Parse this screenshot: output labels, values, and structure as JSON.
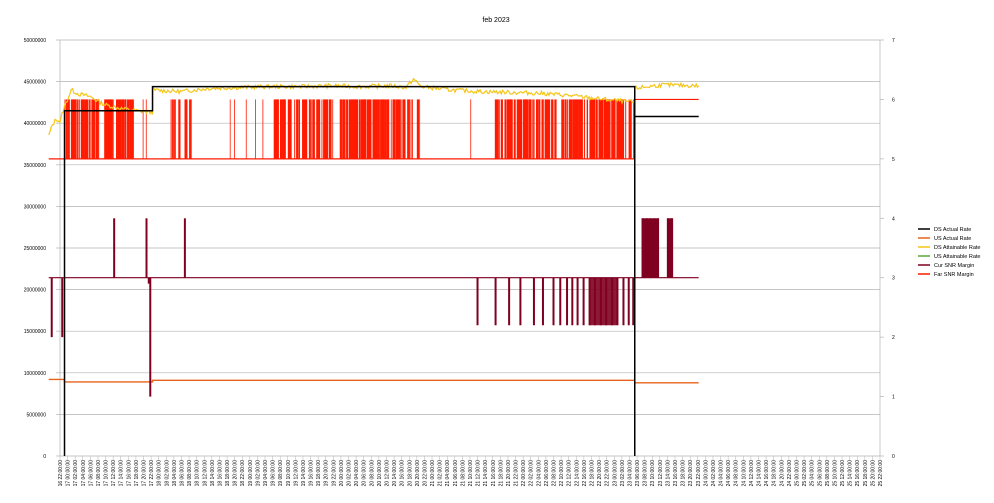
{
  "chart_data": {
    "type": "line",
    "title": "feb 2023",
    "xlabel": "",
    "ylabel": "",
    "ylim": [
      0,
      50000000
    ],
    "y2lim": [
      0,
      7
    ],
    "y_ticks": [
      "0",
      "5000000",
      "10000000",
      "15000000",
      "20000000",
      "25000000",
      "30000000",
      "35000000",
      "40000000",
      "45000000",
      "50000000"
    ],
    "y2_ticks": [
      "0",
      "1",
      "2",
      "3",
      "4",
      "5",
      "6",
      "7"
    ],
    "x_tick_labels": [
      "16 22:00:00",
      "17 00:00:00",
      "17 02:00:00",
      "17 04:00:00",
      "17 06:00:00",
      "17 08:00:00",
      "17 10:00:00",
      "17 12:00:00",
      "17 14:00:00",
      "17 16:00:00",
      "17 18:00:00",
      "17 20:00:00",
      "17 22:00:00",
      "18 00:00:00",
      "18 02:00:00",
      "18 04:00:00",
      "18 06:00:00",
      "18 08:00:00",
      "18 10:00:00",
      "18 12:00:00",
      "18 14:00:00",
      "18 16:00:00",
      "18 18:00:00",
      "18 20:00:00",
      "18 22:00:00",
      "19 00:00:00",
      "19 02:00:00",
      "19 04:00:00",
      "19 06:00:00",
      "19 08:00:00",
      "19 10:00:00",
      "19 12:00:00",
      "19 14:00:00",
      "19 16:00:00",
      "19 18:00:00",
      "19 20:00:00",
      "19 22:00:00",
      "20 00:00:00",
      "20 02:00:00",
      "20 04:00:00",
      "20 06:00:00",
      "20 08:00:00",
      "20 10:00:00",
      "20 12:00:00",
      "20 14:00:00",
      "20 16:00:00",
      "20 18:00:00",
      "20 20:00:00",
      "20 22:00:00",
      "21 00:00:00",
      "21 02:00:00",
      "21 04:00:00",
      "21 06:00:00",
      "21 08:00:00",
      "21 10:00:00",
      "21 12:00:00",
      "21 14:00:00",
      "21 16:00:00",
      "21 18:00:00",
      "21 20:00:00",
      "21 22:00:00",
      "22 00:00:00",
      "22 02:00:00",
      "22 04:00:00",
      "22 06:00:00",
      "22 08:00:00",
      "22 10:00:00",
      "22 12:00:00",
      "22 14:00:00",
      "22 16:00:00",
      "22 18:00:00",
      "22 20:00:00",
      "22 22:00:00",
      "23 00:00:00",
      "23 02:00:00",
      "23 04:00:00",
      "23 06:00:00",
      "23 08:00:00",
      "23 10:00:00",
      "23 12:00:00",
      "23 14:00:00",
      "23 16:00:00",
      "23 18:00:00",
      "23 20:00:00",
      "23 22:00:00",
      "24 00:00:00",
      "24 02:00:00",
      "24 04:00:00",
      "24 06:00:00",
      "24 08:00:00",
      "24 10:00:00",
      "24 12:00:00",
      "24 14:00:00",
      "24 16:00:00",
      "24 18:00:00",
      "24 20:00:00",
      "24 22:00:00",
      "25 00:00:00",
      "25 02:00:00",
      "25 04:00:00",
      "25 06:00:00",
      "25 08:00:00",
      "25 10:00:00",
      "25 12:00:00",
      "25 14:00:00",
      "25 16:00:00",
      "25 18:00:00",
      "25 20:00:00",
      "25 22:00:00"
    ],
    "x_range": [
      0,
      109
    ],
    "grid": true,
    "legend_position": "right",
    "colors": {
      "ds_actual": "#000000",
      "us_actual": "#e8641c",
      "ds_attainable": "#f5c518",
      "us_attainable": "#58a832",
      "cur_snr": "#7f0020",
      "far_snr": "#ff1a00",
      "grid": "#b3b3b3",
      "axis": "#b3b3b3"
    },
    "series": [
      {
        "name": "DS  Actual Rate",
        "axis": "left",
        "color_key": "ds_actual",
        "points": [
          [
            0.6,
            0
          ],
          [
            0.6,
            41500000
          ],
          [
            12.3,
            41500000
          ],
          [
            12.3,
            44400000
          ],
          [
            76.4,
            44400000
          ],
          [
            76.4,
            0
          ],
          [
            76.4,
            40800000
          ],
          [
            84.9,
            40800000
          ]
        ]
      },
      {
        "name": "US  Actual Rate",
        "axis": "left",
        "color_key": "us_actual",
        "points": [
          [
            -1.5,
            9200000
          ],
          [
            0.6,
            9200000
          ],
          [
            0.6,
            8900000
          ],
          [
            12.3,
            8900000
          ],
          [
            12.3,
            9100000
          ],
          [
            76.4,
            9100000
          ],
          [
            76.4,
            8800000
          ],
          [
            84.9,
            8800000
          ]
        ]
      },
      {
        "name": "DS  Attainable Rate",
        "axis": "left",
        "color_key": "ds_attainable",
        "points": [
          [
            -1.5,
            38500000
          ],
          [
            -1,
            39800000
          ],
          [
            -0.5,
            40500000
          ],
          [
            0,
            40200000
          ],
          [
            0.6,
            42000000
          ],
          [
            1.5,
            44000000
          ],
          [
            2.5,
            43500000
          ],
          [
            4,
            43200000
          ],
          [
            6,
            42200000
          ],
          [
            8,
            41800000
          ],
          [
            10,
            41500000
          ],
          [
            12.3,
            41300000
          ],
          [
            12.3,
            44000000
          ],
          [
            16,
            43800000
          ],
          [
            20,
            44200000
          ],
          [
            24,
            44300000
          ],
          [
            28,
            44400000
          ],
          [
            32,
            44400000
          ],
          [
            36,
            44500000
          ],
          [
            40,
            44400000
          ],
          [
            44,
            44500000
          ],
          [
            46,
            44300000
          ],
          [
            47,
            45300000
          ],
          [
            48,
            44400000
          ],
          [
            52,
            44000000
          ],
          [
            56,
            43800000
          ],
          [
            60,
            43700000
          ],
          [
            64,
            43600000
          ],
          [
            68,
            43300000
          ],
          [
            72,
            42900000
          ],
          [
            76.4,
            42500000
          ],
          [
            76.4,
            44200000
          ],
          [
            80,
            44600000
          ],
          [
            84.9,
            44500000
          ]
        ]
      },
      {
        "name": "US  Attainable Rate",
        "axis": "left",
        "color_key": "us_attainable",
        "points": []
      },
      {
        "name": "Cur SNR Margin",
        "axis": "right",
        "color_key": "cur_snr",
        "baseline": 3,
        "points": [
          [
            -1.5,
            3
          ],
          [
            84.9,
            3
          ]
        ],
        "dips": [
          [
            -1.1,
            2
          ],
          [
            0.3,
            2
          ],
          [
            12.0,
            1
          ],
          [
            11.8,
            2.9
          ],
          [
            55.5,
            2.2
          ],
          [
            57.9,
            2.2
          ],
          [
            59.7,
            2.2
          ],
          [
            61.2,
            2.2
          ],
          [
            63.0,
            2.2
          ],
          [
            64.2,
            2.2
          ],
          [
            65.6,
            2.2
          ],
          [
            66.5,
            2.2
          ],
          [
            67.4,
            2.2
          ],
          [
            68.1,
            2.2
          ],
          [
            68.8,
            2.2
          ],
          [
            69.6,
            2.2
          ],
          [
            70.4,
            2.2
          ],
          [
            71.1,
            2.2
          ],
          [
            71.9,
            2.2
          ],
          [
            72.6,
            2.2
          ],
          [
            73.4,
            2.2
          ],
          [
            74.1,
            2.2
          ],
          [
            74.9,
            2.2
          ],
          [
            75.6,
            2.2
          ],
          [
            76.2,
            2.2
          ]
        ],
        "spikes": [
          [
            7.2,
            4
          ],
          [
            11.5,
            4
          ],
          [
            16.6,
            4
          ],
          [
            77.5,
            4
          ],
          [
            78.0,
            4
          ],
          [
            78.5,
            4
          ],
          [
            79.0,
            4
          ],
          [
            79.5,
            4
          ],
          [
            80.8,
            4
          ],
          [
            81.3,
            4
          ]
        ]
      },
      {
        "name": "Far SNR Margin",
        "axis": "right",
        "color_key": "far_snr",
        "baseline": 5,
        "high": 6,
        "points": [
          [
            -1.5,
            5
          ],
          [
            76.4,
            5
          ],
          [
            76.4,
            6
          ],
          [
            84.9,
            6
          ]
        ],
        "toggle_start": 0.6,
        "toggle_end": 76.4
      }
    ]
  }
}
